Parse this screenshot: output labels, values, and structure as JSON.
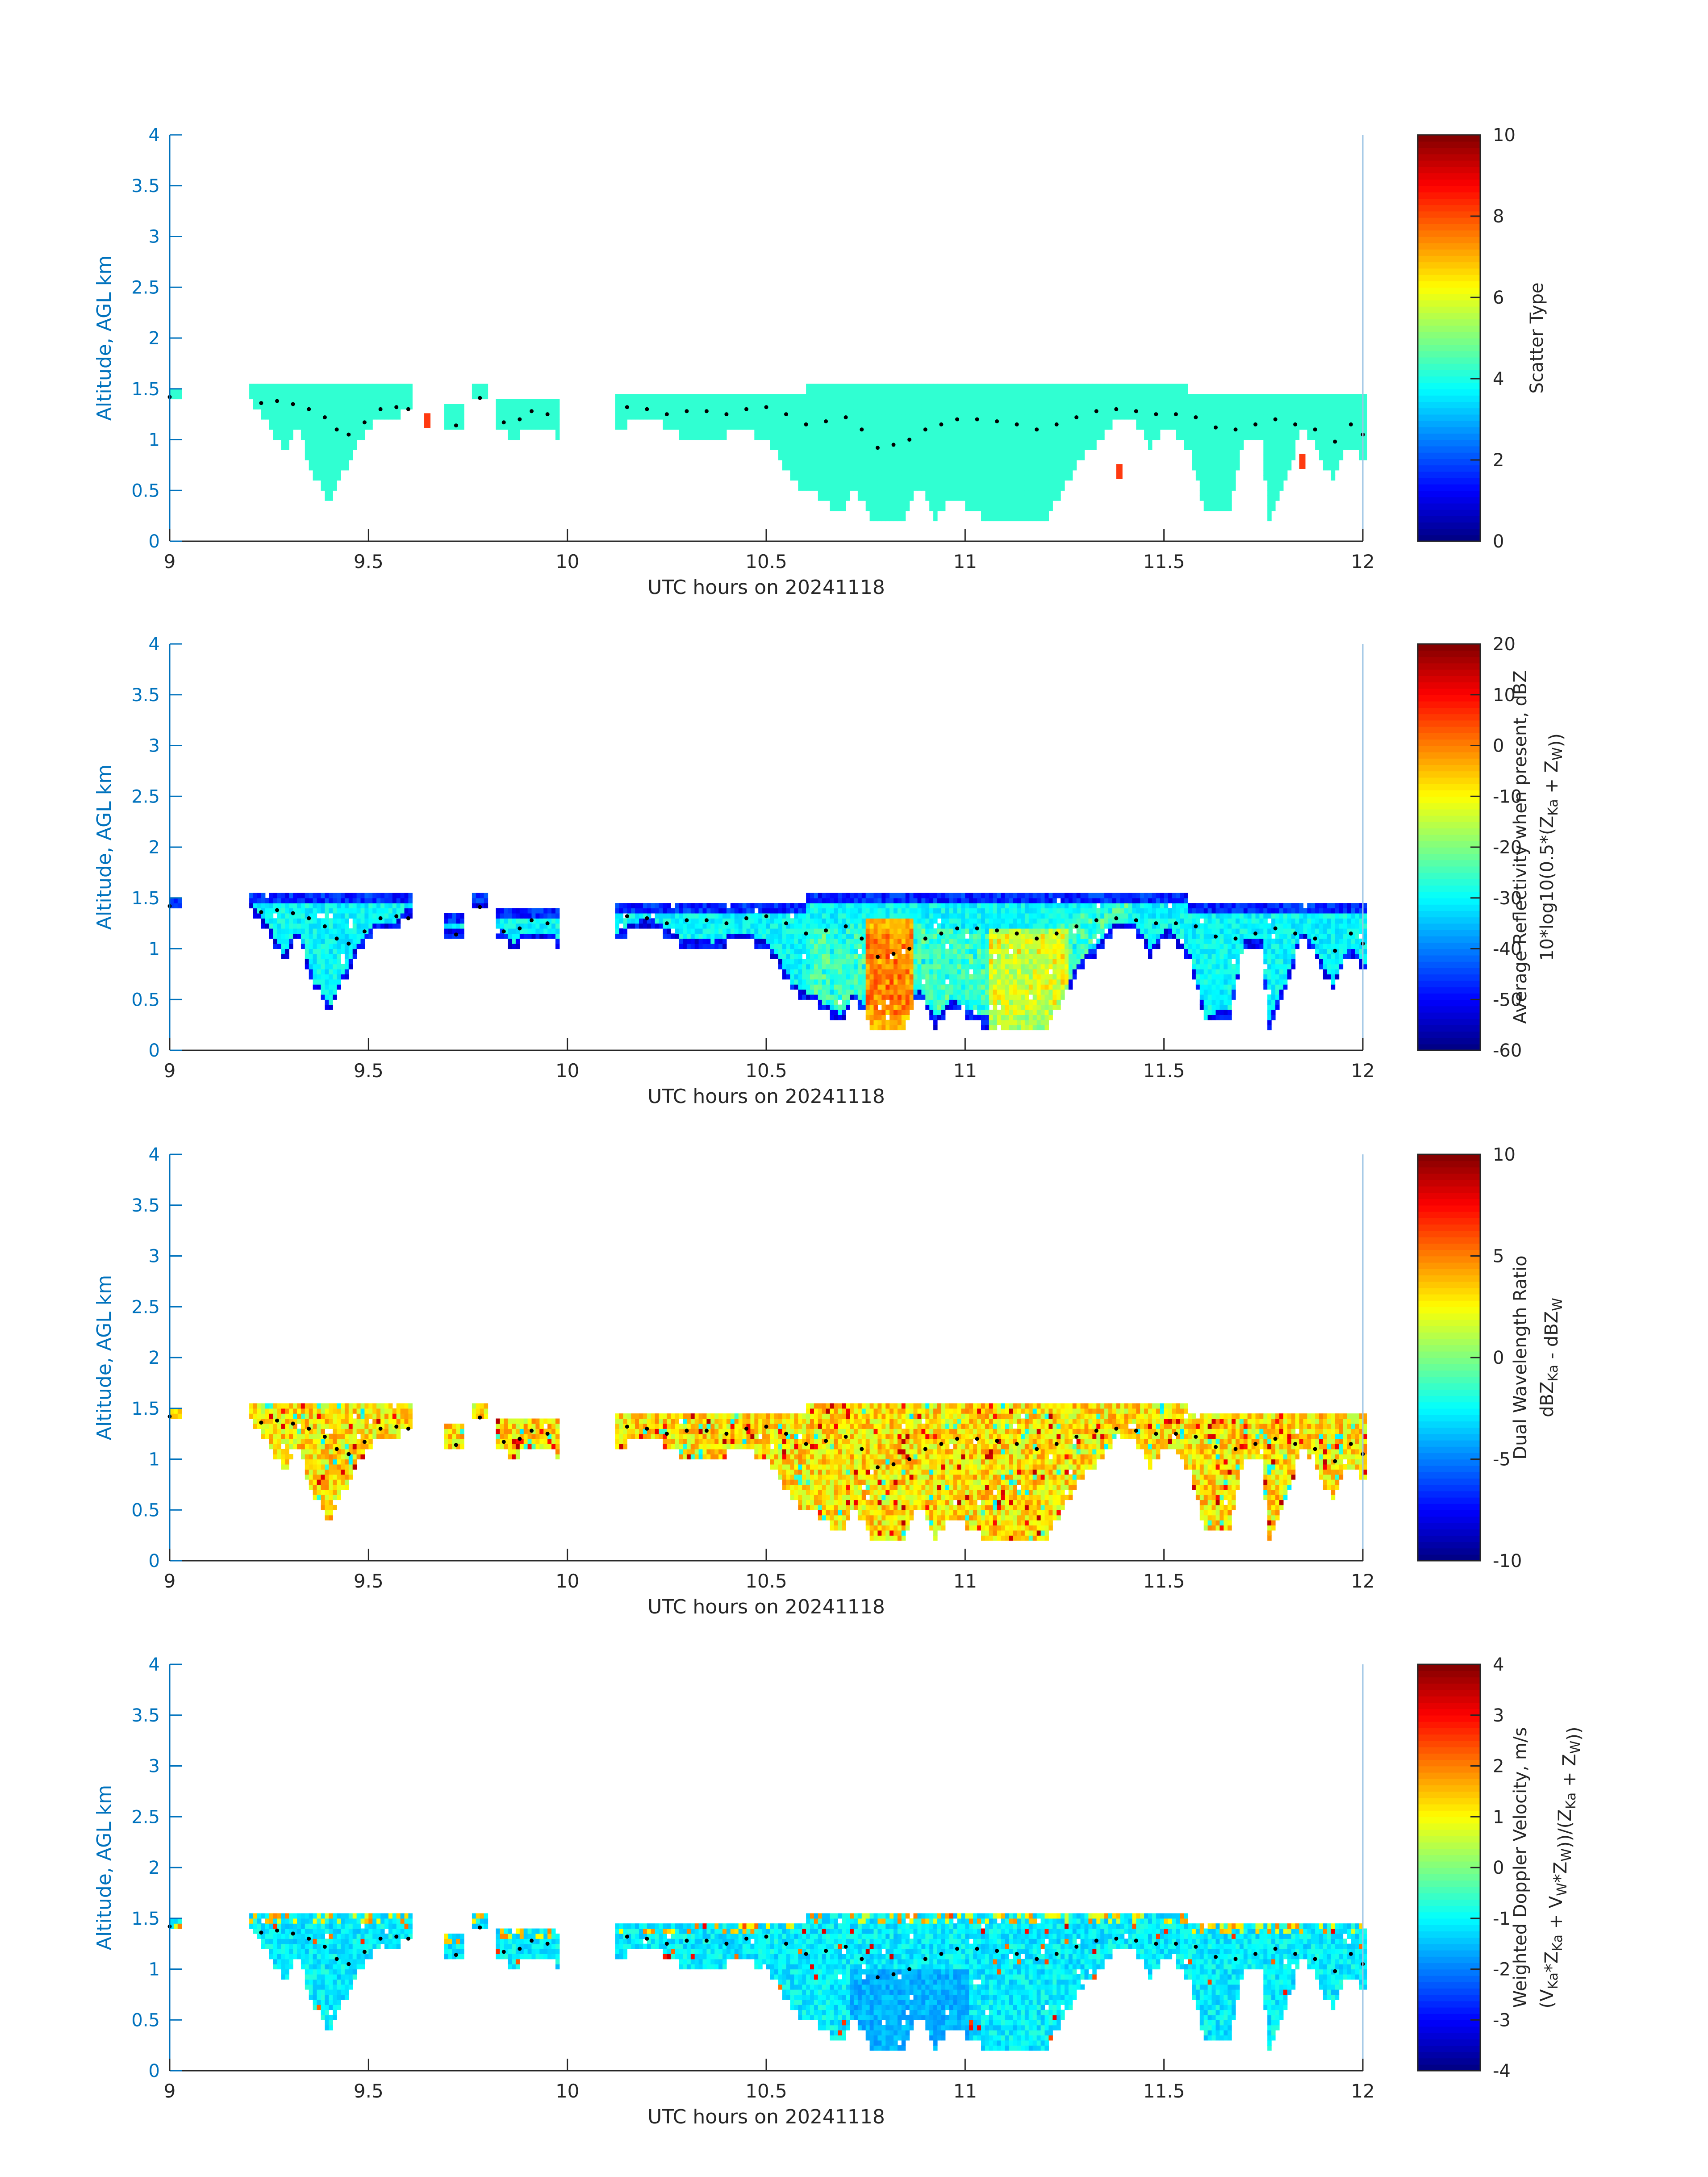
{
  "figure": {
    "panels": 4,
    "colors": {
      "axis_left": "#0072BD",
      "axis_frame": "#9dc4e4",
      "text": "#262626",
      "plume": "#30ffd2",
      "dots": "#000000",
      "red_patch": "#ff3a10"
    },
    "colormap": "jet"
  },
  "chart_data": [
    {
      "type": "heatmap",
      "title": "",
      "xlabel": "UTC hours on 20241118",
      "ylabel": "Altitude, AGL km",
      "colorbar_label": "Scatter Type",
      "xlim": [
        9,
        12
      ],
      "ylim": [
        0,
        4
      ],
      "clim": [
        0,
        10
      ],
      "x_ticks": [
        9,
        9.5,
        10,
        10.5,
        11,
        11.5,
        12
      ],
      "x_tick_labels": [
        "9",
        "9.5",
        "10",
        "10.5",
        "11",
        "11.5",
        "12"
      ],
      "y_ticks": [
        0,
        0.5,
        1,
        1.5,
        2,
        2.5,
        3,
        3.5,
        4
      ],
      "y_tick_labels": [
        "0",
        "0.5",
        "1",
        "1.5",
        "2",
        "2.5",
        "3",
        "3.5",
        "4"
      ],
      "colorbar_ticks": [
        0,
        2,
        4,
        6,
        8,
        10
      ],
      "colorbar_tick_labels": [
        "0",
        "2",
        "4",
        "6",
        "8",
        "10"
      ],
      "dominant_value": 4,
      "notes_values": {
        "isolated_patches": [
          {
            "x": 9.64,
            "y": 1.2,
            "value": 8.5
          },
          {
            "x": 11.38,
            "y": 0.7,
            "value": 8.5
          },
          {
            "x": 11.84,
            "y": 0.8,
            "value": 8.5
          }
        ]
      }
    },
    {
      "type": "heatmap",
      "title": "",
      "xlabel": "UTC hours on 20241118",
      "ylabel": "Altitude, AGL km",
      "colorbar_label": "Average Reflectivity when present, dBZ",
      "colorbar_label_2": "10*log10(0.5*(Z",
      "colorbar_label_2_sub1": "Ka",
      "colorbar_label_2_mid": " + Z",
      "colorbar_label_2_sub2": "W",
      "colorbar_label_2_end": "))",
      "xlim": [
        9,
        12
      ],
      "ylim": [
        0,
        4
      ],
      "clim": [
        -60,
        20
      ],
      "x_ticks": [
        9,
        9.5,
        10,
        10.5,
        11,
        11.5,
        12
      ],
      "x_tick_labels": [
        "9",
        "9.5",
        "10",
        "10.5",
        "11",
        "11.5",
        "12"
      ],
      "y_ticks": [
        0,
        0.5,
        1,
        1.5,
        2,
        2.5,
        3,
        3.5,
        4
      ],
      "y_tick_labels": [
        "0",
        "0.5",
        "1",
        "1.5",
        "2",
        "2.5",
        "3",
        "3.5",
        "4"
      ],
      "colorbar_ticks": [
        -60,
        -50,
        -40,
        -30,
        -20,
        -10,
        0,
        10,
        20
      ],
      "colorbar_tick_labels": [
        "-60",
        "-50",
        "-40",
        "-30",
        "-20",
        "-10",
        "0",
        "10",
        "20"
      ],
      "value_range_observed": [
        -58,
        0
      ]
    },
    {
      "type": "heatmap",
      "title": "",
      "xlabel": "UTC hours on 20241118",
      "ylabel": "Altitude, AGL km",
      "colorbar_label": "Dual Wavelength Ratio",
      "colorbar_label_2": "dBZ",
      "colorbar_label_2_sub1": "Ka",
      "colorbar_label_2_mid": " - dBZ",
      "colorbar_label_2_sub2": "W",
      "colorbar_label_2_end": "",
      "xlim": [
        9,
        12
      ],
      "ylim": [
        0,
        4
      ],
      "clim": [
        -10,
        10
      ],
      "x_ticks": [
        9,
        9.5,
        10,
        10.5,
        11,
        11.5,
        12
      ],
      "x_tick_labels": [
        "9",
        "9.5",
        "10",
        "10.5",
        "11",
        "11.5",
        "12"
      ],
      "y_ticks": [
        0,
        0.5,
        1,
        1.5,
        2,
        2.5,
        3,
        3.5,
        4
      ],
      "y_tick_labels": [
        "0",
        "0.5",
        "1",
        "1.5",
        "2",
        "2.5",
        "3",
        "3.5",
        "4"
      ],
      "colorbar_ticks": [
        -10,
        -5,
        0,
        5,
        10
      ],
      "colorbar_tick_labels": [
        "-10",
        "-5",
        "0",
        "5",
        "10"
      ],
      "value_range_observed": [
        -6,
        9
      ]
    },
    {
      "type": "heatmap",
      "title": "",
      "xlabel": "UTC hours on 20241118",
      "ylabel": "Altitude, AGL km",
      "colorbar_label": "Weighted Doppler Velocity, m/s",
      "colorbar_label_2": "(V",
      "colorbar_label_2_sub1": "Ka",
      "colorbar_label_2_mid": "*Z",
      "colorbar_label_2_sub2": "Ka",
      "colorbar_label_2_end": " + V",
      "colorbar_label_2_sub3": "W",
      "colorbar_label_2_tail1": "*Z",
      "colorbar_label_2_sub4": "W",
      "colorbar_label_2_tail2": "))/(Z",
      "colorbar_label_2_sub5": "Ka",
      "colorbar_label_2_tail3": " + Z",
      "colorbar_label_2_sub6": "W",
      "colorbar_label_2_tail4": "))",
      "xlim": [
        9,
        12
      ],
      "ylim": [
        0,
        4
      ],
      "clim": [
        -4,
        4
      ],
      "x_ticks": [
        9,
        9.5,
        10,
        10.5,
        11,
        11.5,
        12
      ],
      "x_tick_labels": [
        "9",
        "9.5",
        "10",
        "10.5",
        "11",
        "11.5",
        "12"
      ],
      "y_ticks": [
        0,
        0.5,
        1,
        1.5,
        2,
        2.5,
        3,
        3.5,
        4
      ],
      "y_tick_labels": [
        "0",
        "0.5",
        "1",
        "1.5",
        "2",
        "2.5",
        "3",
        "3.5",
        "4"
      ],
      "colorbar_ticks": [
        -4,
        -3,
        -2,
        -1,
        0,
        1,
        2,
        3,
        4
      ],
      "colorbar_tick_labels": [
        "-4",
        "-3",
        "-2",
        "-1",
        "0",
        "1",
        "2",
        "3",
        "4"
      ],
      "value_range_observed": [
        -3,
        3
      ]
    }
  ],
  "cloud_profile": {
    "gate_km": 0.1,
    "segments": [
      {
        "x0": 9.0,
        "x1": 9.02,
        "top": 1.5,
        "base": 1.35
      },
      {
        "x0": 9.2,
        "x1": 9.6,
        "top": 1.55,
        "base_profile": [
          [
            9.2,
            1.35
          ],
          [
            9.24,
            1.15
          ],
          [
            9.28,
            0.85
          ],
          [
            9.32,
            1.05
          ],
          [
            9.36,
            0.55
          ],
          [
            9.4,
            0.35
          ],
          [
            9.44,
            0.7
          ],
          [
            9.48,
            1.0
          ],
          [
            9.52,
            1.15
          ],
          [
            9.56,
            1.15
          ],
          [
            9.6,
            1.3
          ]
        ]
      },
      {
        "x0": 9.69,
        "x1": 9.73,
        "top": 1.35,
        "base": 1.1
      },
      {
        "x0": 9.76,
        "x1": 9.79,
        "top": 1.55,
        "base": 1.4
      },
      {
        "x0": 9.82,
        "x1": 9.97,
        "top": 1.4,
        "base_profile": [
          [
            9.82,
            1.1
          ],
          [
            9.86,
            0.95
          ],
          [
            9.9,
            1.05
          ],
          [
            9.95,
            1.05
          ],
          [
            9.97,
            1.0
          ]
        ]
      },
      {
        "x0": 10.12,
        "x1": 12.0,
        "top": 1.45,
        "base_profile": [
          [
            10.12,
            1.05
          ],
          [
            10.2,
            1.2
          ],
          [
            10.28,
            1.0
          ],
          [
            10.36,
            0.95
          ],
          [
            10.44,
            1.05
          ],
          [
            10.5,
            0.95
          ],
          [
            10.56,
            0.55
          ],
          [
            10.6,
            0.45
          ],
          [
            10.64,
            0.35
          ],
          [
            10.68,
            0.25
          ],
          [
            10.72,
            0.45
          ],
          [
            10.76,
            0.2
          ],
          [
            10.84,
            0.2
          ],
          [
            10.88,
            0.5
          ],
          [
            10.92,
            0.2
          ],
          [
            10.96,
            0.4
          ],
          [
            11.0,
            0.3
          ],
          [
            11.04,
            0.2
          ],
          [
            11.12,
            0.2
          ],
          [
            11.2,
            0.2
          ],
          [
            11.24,
            0.45
          ],
          [
            11.28,
            0.75
          ],
          [
            11.32,
            0.9
          ],
          [
            11.36,
            1.1
          ],
          [
            11.42,
            1.15
          ],
          [
            11.46,
            0.9
          ],
          [
            11.5,
            1.1
          ],
          [
            11.56,
            0.85
          ],
          [
            11.6,
            0.2
          ],
          [
            11.66,
            0.3
          ],
          [
            11.7,
            1.0
          ],
          [
            11.74,
            1.0
          ],
          [
            11.76,
            0.2
          ],
          [
            11.8,
            0.55
          ],
          [
            11.84,
            1.05
          ],
          [
            11.88,
            0.85
          ],
          [
            11.92,
            0.55
          ],
          [
            11.96,
            0.9
          ],
          [
            12.0,
            0.75
          ]
        ]
      }
    ],
    "thick_region_top": [
      {
        "x0": 10.6,
        "x1": 11.55,
        "top": 1.55
      }
    ],
    "cloud_base_dots": [
      [
        9.0,
        1.42
      ],
      [
        9.23,
        1.36
      ],
      [
        9.27,
        1.38
      ],
      [
        9.31,
        1.35
      ],
      [
        9.35,
        1.3
      ],
      [
        9.39,
        1.22
      ],
      [
        9.42,
        1.1
      ],
      [
        9.45,
        1.05
      ],
      [
        9.49,
        1.17
      ],
      [
        9.53,
        1.3
      ],
      [
        9.57,
        1.32
      ],
      [
        9.6,
        1.3
      ],
      [
        9.72,
        1.14
      ],
      [
        9.78,
        1.41
      ],
      [
        9.84,
        1.17
      ],
      [
        9.88,
        1.2
      ],
      [
        9.91,
        1.28
      ],
      [
        9.95,
        1.25
      ],
      [
        10.15,
        1.32
      ],
      [
        10.2,
        1.3
      ],
      [
        10.25,
        1.25
      ],
      [
        10.3,
        1.28
      ],
      [
        10.35,
        1.28
      ],
      [
        10.4,
        1.25
      ],
      [
        10.45,
        1.3
      ],
      [
        10.5,
        1.32
      ],
      [
        10.55,
        1.25
      ],
      [
        10.6,
        1.15
      ],
      [
        10.65,
        1.18
      ],
      [
        10.7,
        1.22
      ],
      [
        10.74,
        1.1
      ],
      [
        10.78,
        0.92
      ],
      [
        10.82,
        0.95
      ],
      [
        10.86,
        1.0
      ],
      [
        10.9,
        1.1
      ],
      [
        10.94,
        1.15
      ],
      [
        10.98,
        1.2
      ],
      [
        11.03,
        1.2
      ],
      [
        11.08,
        1.18
      ],
      [
        11.13,
        1.15
      ],
      [
        11.18,
        1.1
      ],
      [
        11.23,
        1.15
      ],
      [
        11.28,
        1.22
      ],
      [
        11.33,
        1.28
      ],
      [
        11.38,
        1.3
      ],
      [
        11.43,
        1.28
      ],
      [
        11.48,
        1.25
      ],
      [
        11.53,
        1.25
      ],
      [
        11.58,
        1.22
      ],
      [
        11.63,
        1.12
      ],
      [
        11.68,
        1.1
      ],
      [
        11.73,
        1.15
      ],
      [
        11.78,
        1.2
      ],
      [
        11.83,
        1.15
      ],
      [
        11.88,
        1.1
      ],
      [
        11.93,
        0.98
      ],
      [
        11.97,
        1.15
      ],
      [
        12.0,
        1.05
      ]
    ]
  }
}
